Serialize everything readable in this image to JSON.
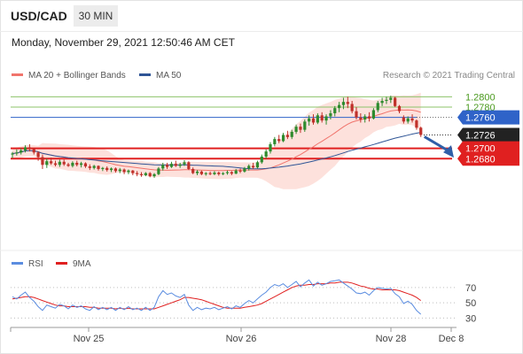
{
  "header": {
    "symbol": "USD/CAD",
    "timeframe": "30 MIN",
    "datetime": "Monday, November 29, 2021 12:50:46 AM CET"
  },
  "legend": {
    "ma20": "MA 20 + Bollinger Bands",
    "ma50": "MA 50",
    "credit": "Research © 2021 Trading Central"
  },
  "rsi_legend": {
    "rsi": "RSI",
    "ma9": "9MA"
  },
  "colors": {
    "ma20": "#f0746c",
    "ma50": "#2f5596",
    "bollinger_band": "#fddcd6",
    "resistance": "#8cc36a",
    "pivot": "#2f63c8",
    "support": "#e02020",
    "rsi": "#5b8de0",
    "rsi_ma": "#e02020",
    "arrow": "#2f5fa8",
    "candle_up": "#2e8b2e",
    "candle_down": "#c0302a"
  },
  "chart_data": [
    {
      "type": "candlestick",
      "title": "USD/CAD",
      "ylim": [
        1.2533,
        1.2816
      ],
      "x_ticks": [
        "Nov 25",
        "Nov 26",
        "Nov 28",
        "Dec 8"
      ],
      "current_price": 1.2726,
      "levels": [
        {
          "label": "1.2800",
          "value": 1.28,
          "kind": "resistance"
        },
        {
          "label": "1.2780",
          "value": 1.278,
          "kind": "resistance"
        },
        {
          "label": "1.2760",
          "value": 1.276,
          "kind": "pivot"
        },
        {
          "label": "1.2726",
          "value": 1.2726,
          "kind": "last"
        },
        {
          "label": "1.2700",
          "value": 1.27,
          "kind": "support"
        },
        {
          "label": "1.2680",
          "value": 1.268,
          "kind": "support"
        }
      ],
      "ohlc": [
        [
          1.2688,
          1.2693,
          1.2681,
          1.269
        ],
        [
          1.269,
          1.2698,
          1.2686,
          1.2692
        ],
        [
          1.2692,
          1.27,
          1.2688,
          1.2696
        ],
        [
          1.2696,
          1.2706,
          1.2692,
          1.2702
        ],
        [
          1.2702,
          1.2708,
          1.2694,
          1.2699
        ],
        [
          1.2699,
          1.2701,
          1.2688,
          1.2692
        ],
        [
          1.2692,
          1.2694,
          1.2676,
          1.2683
        ],
        [
          1.2683,
          1.2688,
          1.266,
          1.2668
        ],
        [
          1.2668,
          1.268,
          1.2662,
          1.2675
        ],
        [
          1.2675,
          1.2682,
          1.2668,
          1.2671
        ],
        [
          1.2671,
          1.2676,
          1.2665,
          1.2668
        ],
        [
          1.2668,
          1.2678,
          1.2664,
          1.2674
        ],
        [
          1.2674,
          1.2678,
          1.2666,
          1.2669
        ],
        [
          1.2669,
          1.2672,
          1.2664,
          1.2666
        ],
        [
          1.2666,
          1.2675,
          1.2663,
          1.2672
        ],
        [
          1.2672,
          1.2676,
          1.2665,
          1.2668
        ],
        [
          1.2668,
          1.2674,
          1.2663,
          1.2671
        ],
        [
          1.2671,
          1.2673,
          1.2662,
          1.2665
        ],
        [
          1.2665,
          1.2669,
          1.2658,
          1.2662
        ],
        [
          1.2662,
          1.2668,
          1.2659,
          1.2666
        ],
        [
          1.2666,
          1.2667,
          1.2657,
          1.266
        ],
        [
          1.266,
          1.2664,
          1.2656,
          1.2662
        ],
        [
          1.2662,
          1.2665,
          1.2655,
          1.2658
        ],
        [
          1.2658,
          1.2663,
          1.2654,
          1.2661
        ],
        [
          1.2661,
          1.2663,
          1.2653,
          1.2656
        ],
        [
          1.2656,
          1.2662,
          1.2652,
          1.2659
        ],
        [
          1.2659,
          1.2661,
          1.265,
          1.2654
        ],
        [
          1.2654,
          1.2659,
          1.265,
          1.2657
        ],
        [
          1.2657,
          1.2658,
          1.2648,
          1.2652
        ],
        [
          1.2652,
          1.2656,
          1.2646,
          1.265
        ],
        [
          1.265,
          1.2654,
          1.2645,
          1.2648
        ],
        [
          1.2648,
          1.2654,
          1.2646,
          1.2652
        ],
        [
          1.2652,
          1.2654,
          1.2644,
          1.2646
        ],
        [
          1.2646,
          1.2652,
          1.2643,
          1.265
        ],
        [
          1.265,
          1.2664,
          1.2648,
          1.2661
        ],
        [
          1.2661,
          1.2672,
          1.2657,
          1.2668
        ],
        [
          1.2668,
          1.2672,
          1.266,
          1.2664
        ],
        [
          1.2664,
          1.2674,
          1.2662,
          1.267
        ],
        [
          1.267,
          1.2676,
          1.2664,
          1.2666
        ],
        [
          1.2666,
          1.2672,
          1.2662,
          1.2669
        ],
        [
          1.2669,
          1.2677,
          1.2666,
          1.2673
        ],
        [
          1.2673,
          1.2675,
          1.2658,
          1.266
        ],
        [
          1.266,
          1.2663,
          1.265,
          1.2652
        ],
        [
          1.2652,
          1.2658,
          1.2648,
          1.2655
        ],
        [
          1.2655,
          1.2657,
          1.2648,
          1.265
        ],
        [
          1.265,
          1.2654,
          1.2647,
          1.2652
        ],
        [
          1.2652,
          1.2655,
          1.2648,
          1.265
        ],
        [
          1.265,
          1.2656,
          1.2648,
          1.2653
        ],
        [
          1.2653,
          1.2655,
          1.2647,
          1.265
        ],
        [
          1.265,
          1.2654,
          1.2648,
          1.2652
        ],
        [
          1.2652,
          1.2657,
          1.2649,
          1.2654
        ],
        [
          1.2654,
          1.2656,
          1.2648,
          1.2651
        ],
        [
          1.2651,
          1.266,
          1.265,
          1.2657
        ],
        [
          1.2657,
          1.2661,
          1.2652,
          1.2655
        ],
        [
          1.2655,
          1.2664,
          1.2653,
          1.2661
        ],
        [
          1.2661,
          1.2669,
          1.2657,
          1.2666
        ],
        [
          1.2666,
          1.2672,
          1.266,
          1.2663
        ],
        [
          1.2663,
          1.2676,
          1.2661,
          1.2673
        ],
        [
          1.2673,
          1.2688,
          1.267,
          1.2684
        ],
        [
          1.2684,
          1.2698,
          1.268,
          1.2694
        ],
        [
          1.2694,
          1.2712,
          1.269,
          1.2708
        ],
        [
          1.2708,
          1.2722,
          1.2704,
          1.2718
        ],
        [
          1.2718,
          1.2726,
          1.271,
          1.2714
        ],
        [
          1.2714,
          1.273,
          1.2712,
          1.2726
        ],
        [
          1.2726,
          1.2734,
          1.2718,
          1.2722
        ],
        [
          1.2722,
          1.2736,
          1.2718,
          1.2732
        ],
        [
          1.2732,
          1.2746,
          1.2728,
          1.2742
        ],
        [
          1.2742,
          1.2748,
          1.273,
          1.2736
        ],
        [
          1.2736,
          1.2756,
          1.2732,
          1.2752
        ],
        [
          1.2752,
          1.2764,
          1.2744,
          1.2758
        ],
        [
          1.2758,
          1.2766,
          1.2746,
          1.275
        ],
        [
          1.275,
          1.2768,
          1.2747,
          1.2764
        ],
        [
          1.2764,
          1.277,
          1.275,
          1.2754
        ],
        [
          1.2754,
          1.2766,
          1.2746,
          1.2762
        ],
        [
          1.2762,
          1.2774,
          1.2756,
          1.2768
        ],
        [
          1.2768,
          1.2782,
          1.2762,
          1.2778
        ],
        [
          1.2778,
          1.279,
          1.277,
          1.2784
        ],
        [
          1.2784,
          1.2798,
          1.2776,
          1.279
        ],
        [
          1.279,
          1.28,
          1.2778,
          1.2786
        ],
        [
          1.2786,
          1.2792,
          1.2768,
          1.2772
        ],
        [
          1.2772,
          1.278,
          1.2756,
          1.276
        ],
        [
          1.276,
          1.2768,
          1.275,
          1.2756
        ],
        [
          1.2756,
          1.2766,
          1.275,
          1.2762
        ],
        [
          1.2762,
          1.277,
          1.2752,
          1.2758
        ],
        [
          1.2758,
          1.2778,
          1.2756,
          1.2774
        ],
        [
          1.2774,
          1.2792,
          1.277,
          1.2788
        ],
        [
          1.2788,
          1.2798,
          1.2782,
          1.2792
        ],
        [
          1.2792,
          1.28,
          1.2786,
          1.2794
        ],
        [
          1.2794,
          1.2802,
          1.2788,
          1.2798
        ],
        [
          1.2798,
          1.28,
          1.278,
          1.2782
        ],
        [
          1.2782,
          1.2784,
          1.2768,
          1.2772
        ],
        [
          1.276,
          1.2764,
          1.2748,
          1.2752
        ],
        [
          1.2752,
          1.2762,
          1.2748,
          1.2758
        ],
        [
          1.2758,
          1.2766,
          1.275,
          1.2754
        ],
        [
          1.2754,
          1.2756,
          1.2736,
          1.274
        ],
        [
          1.274,
          1.2742,
          1.2722,
          1.2726
        ]
      ]
    },
    {
      "type": "line",
      "title": "RSI",
      "ylim": [
        20,
        85
      ],
      "y_ticks": [
        70,
        50,
        30
      ],
      "series": [
        {
          "name": "RSI",
          "values": [
            58,
            55,
            60,
            64,
            57,
            52,
            45,
            40,
            47,
            45,
            43,
            48,
            46,
            42,
            47,
            44,
            46,
            42,
            40,
            45,
            41,
            44,
            41,
            44,
            40,
            44,
            41,
            45,
            41,
            43,
            40,
            44,
            40,
            44,
            58,
            66,
            61,
            63,
            59,
            57,
            61,
            47,
            40,
            44,
            41,
            43,
            42,
            44,
            41,
            43,
            45,
            42,
            46,
            44,
            49,
            53,
            50,
            55,
            60,
            64,
            70,
            74,
            72,
            75,
            70,
            74,
            78,
            71,
            76,
            80,
            72,
            77,
            73,
            75,
            78,
            79,
            80,
            76,
            72,
            68,
            63,
            62,
            64,
            60,
            66,
            70,
            69,
            68,
            69,
            62,
            58,
            49,
            52,
            48,
            40,
            35
          ]
        },
        {
          "name": "9MA",
          "values": [
            55,
            56,
            57,
            58,
            58,
            57,
            55,
            53,
            51,
            49,
            47,
            46,
            46,
            45,
            45,
            45,
            45,
            45,
            44,
            44,
            43,
            43,
            43,
            43,
            42,
            43,
            42,
            43,
            42,
            42,
            42,
            42,
            42,
            42,
            44,
            46,
            48,
            50,
            52,
            54,
            57,
            57,
            56,
            55,
            54,
            52,
            50,
            48,
            46,
            44,
            43,
            43,
            43,
            43,
            44,
            45,
            46,
            47,
            49,
            52,
            55,
            58,
            61,
            64,
            67,
            70,
            72,
            73,
            73,
            74,
            74,
            75,
            75,
            75,
            76,
            76,
            77,
            77,
            77,
            76,
            74,
            72,
            71,
            69,
            68,
            68,
            67,
            67,
            67,
            67,
            66,
            64,
            62,
            60,
            57,
            53
          ]
        }
      ]
    }
  ]
}
